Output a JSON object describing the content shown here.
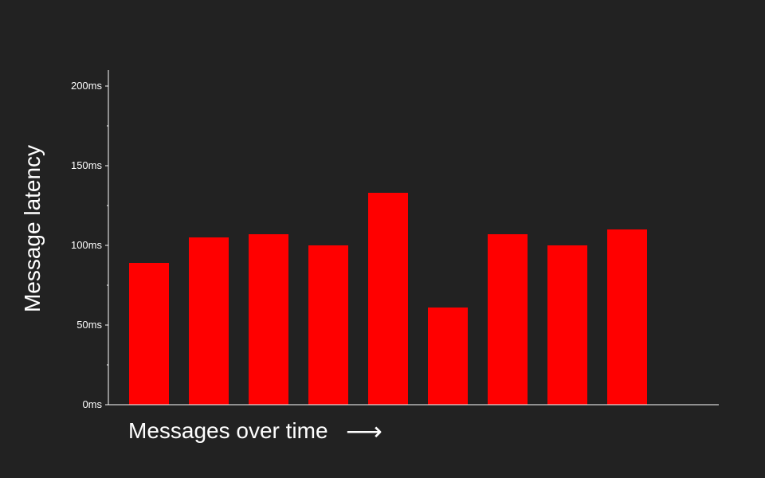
{
  "chart_data": {
    "type": "bar",
    "title": "",
    "xlabel": "Messages over time",
    "xlabel_arrow": "⟶",
    "ylabel": "Message latency",
    "ylim": [
      0,
      200
    ],
    "y_ticks": [
      {
        "value": 0,
        "label": "0ms"
      },
      {
        "value": 50,
        "label": "50ms"
      },
      {
        "value": 100,
        "label": "100ms"
      },
      {
        "value": 150,
        "label": "150ms"
      },
      {
        "value": 200,
        "label": "200ms"
      }
    ],
    "y_minor_ticks": [
      25,
      75,
      125,
      175
    ],
    "values": [
      89,
      105,
      107,
      100,
      133,
      61,
      107,
      100,
      110
    ],
    "colors": {
      "background": "#222222",
      "bar": "#ff0000",
      "axis": "#ffffff",
      "text": "#ffffff"
    },
    "grid": false,
    "legend": "none"
  }
}
